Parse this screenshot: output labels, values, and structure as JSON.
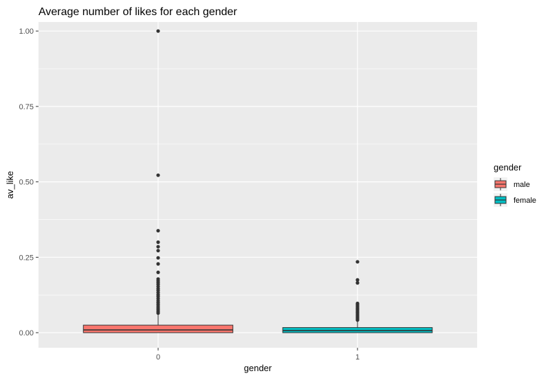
{
  "chart_data": {
    "type": "boxplot",
    "title": "Average number of likes for each gender",
    "xlabel": "gender",
    "ylabel": "av_like",
    "ylim": [
      -0.05,
      1.03
    ],
    "yticks": [
      0.0,
      0.25,
      0.5,
      0.75,
      1.0
    ],
    "ytick_labels": [
      "0.00",
      "0.25",
      "0.50",
      "0.75",
      "1.00"
    ],
    "categories": [
      "0",
      "1"
    ],
    "grid": true,
    "legend": {
      "title": "gender",
      "position": "right",
      "entries": [
        {
          "label": "male",
          "color": "#F8766D"
        },
        {
          "label": "female",
          "color": "#00BFC4"
        }
      ]
    },
    "boxes": [
      {
        "category": "0",
        "group": "male",
        "color": "#F8766D",
        "whisker_low": 0.0,
        "q1": 0.0,
        "median": 0.009,
        "q3": 0.025,
        "whisker_high": 0.062,
        "outliers": [
          1.0,
          0.522,
          0.338,
          0.3,
          0.285,
          0.272,
          0.248,
          0.228,
          0.2,
          0.178,
          0.172,
          0.166,
          0.16,
          0.153,
          0.146,
          0.14,
          0.133,
          0.126,
          0.12,
          0.113,
          0.106,
          0.1,
          0.094,
          0.088,
          0.082,
          0.076,
          0.07,
          0.065
        ]
      },
      {
        "category": "1",
        "group": "female",
        "color": "#00BFC4",
        "whisker_low": 0.0,
        "q1": 0.0,
        "median": 0.007,
        "q3": 0.017,
        "whisker_high": 0.038,
        "outliers": [
          0.235,
          0.175,
          0.165,
          0.097,
          0.092,
          0.087,
          0.082,
          0.077,
          0.072,
          0.067,
          0.062,
          0.057,
          0.052,
          0.047,
          0.042
        ]
      }
    ]
  }
}
